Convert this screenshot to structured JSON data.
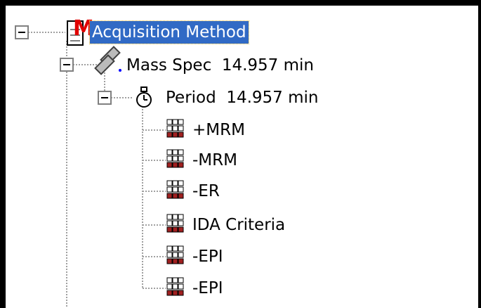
{
  "nodes": [
    {
      "label": "Acquisition Method"
    },
    {
      "label": "Mass Spec  14.957 min"
    },
    {
      "label": "Period  14.957 min"
    },
    {
      "label": "+MRM"
    },
    {
      "label": "-MRM"
    },
    {
      "label": "-ER"
    },
    {
      "label": "IDA Criteria"
    },
    {
      "label": "-EPI"
    },
    {
      "label": "-EPI"
    }
  ]
}
